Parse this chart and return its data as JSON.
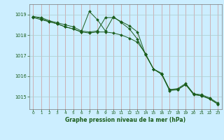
{
  "background_color": "#cceeff",
  "line_color": "#1a5c1a",
  "vgrid_color": "#cc9999",
  "hgrid_color": "#aacccc",
  "xlabel": "Graphe pression niveau de la mer (hPa)",
  "x_values": [
    0,
    1,
    2,
    3,
    4,
    5,
    6,
    7,
    8,
    9,
    10,
    11,
    12,
    13,
    14,
    15,
    16,
    17,
    18,
    19,
    20,
    21,
    22,
    23
  ],
  "yticks": [
    1015,
    1016,
    1017,
    1018,
    1019
  ],
  "ylim": [
    1014.4,
    1019.5
  ],
  "xlim": [
    -0.5,
    23.5
  ],
  "y_line1": [
    1018.9,
    1018.85,
    1018.7,
    1018.6,
    1018.5,
    1018.4,
    1018.2,
    1018.15,
    1018.2,
    1018.85,
    1018.85,
    1018.65,
    1018.45,
    1018.15,
    1017.05,
    1016.35,
    1016.15,
    1015.35,
    1015.4,
    1015.65,
    1015.15,
    1015.1,
    1014.95,
    1014.7
  ],
  "y_line2": [
    1018.85,
    1018.75,
    1018.65,
    1018.55,
    1018.4,
    1018.3,
    1018.15,
    1018.1,
    1018.15,
    1018.15,
    1018.1,
    1018.0,
    1017.85,
    1017.65,
    1017.1,
    1016.35,
    1016.1,
    1015.3,
    1015.35,
    1015.6,
    1015.1,
    1015.05,
    1014.9,
    1014.65
  ],
  "y_line3": [
    1018.9,
    1018.8,
    1018.65,
    1018.55,
    1018.4,
    1018.3,
    1018.15,
    1019.15,
    1018.75,
    1018.2,
    1018.9,
    1018.6,
    1018.3,
    1017.8,
    1017.05,
    1016.35,
    1016.1,
    1015.35,
    1015.35,
    1015.6,
    1015.15,
    1015.05,
    1014.9,
    1014.65
  ]
}
